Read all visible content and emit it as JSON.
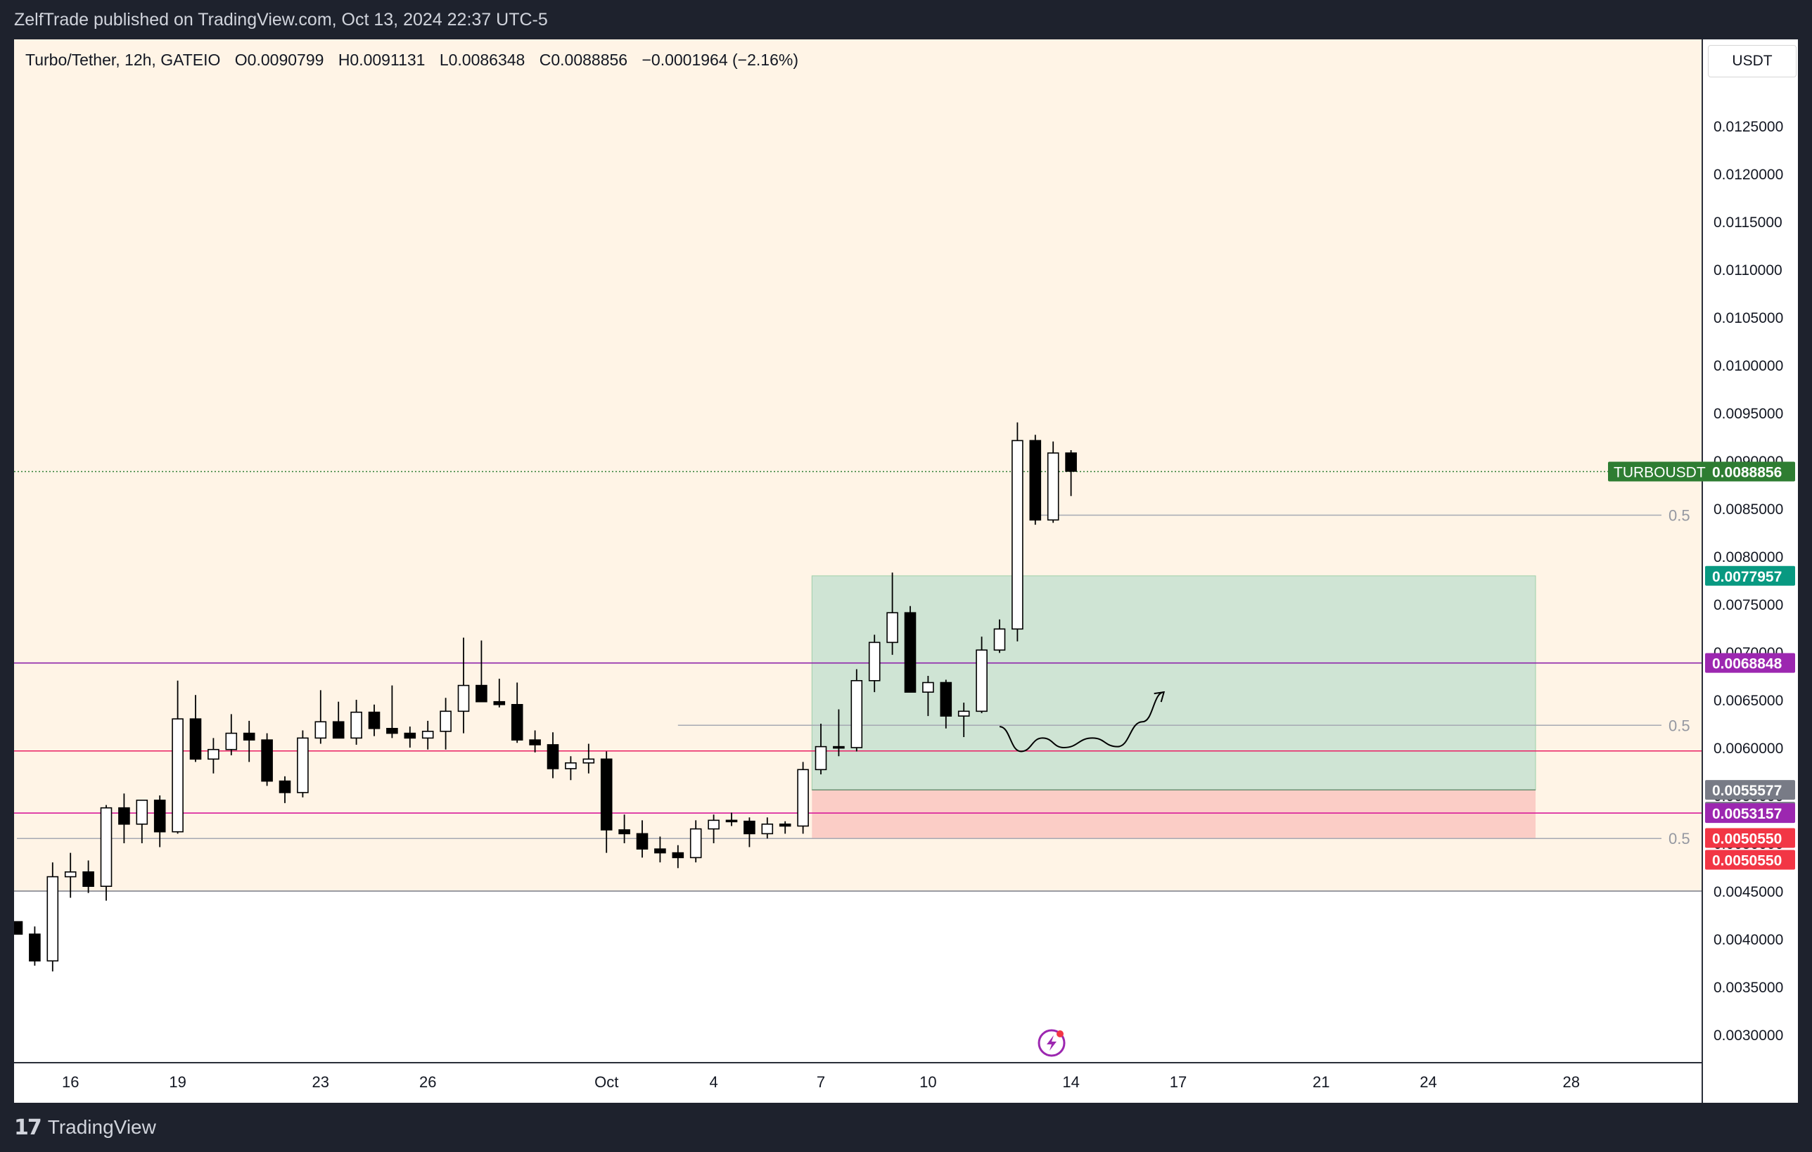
{
  "header": {
    "publish_line": "ZelfTrade published on TradingView.com, Oct 13, 2024 22:37 UTC-5"
  },
  "legend": {
    "symbol": "Turbo/Tether, 12h, GATEIO",
    "open": "O0.0090799",
    "high": "H0.0091131",
    "low": "L0.0086348",
    "close": "C0.0088856",
    "change": "−0.0001964 (−2.16%)"
  },
  "currency": "USDT",
  "footer": {
    "brand": "TradingView",
    "logo_icon": "tradingview-logo-icon"
  },
  "colors": {
    "bg_zone": "#fff4e6",
    "profit_zone": "#cfe4d4",
    "loss_zone": "#fbcdc6",
    "purple_line": "#8e24aa",
    "pink_line": "#e91e63",
    "last_price": "#2e7d32",
    "label_teal": "#089981",
    "label_purple": "#9c27b0",
    "label_gray": "#787b86",
    "label_red": "#f23645"
  },
  "chart_data": {
    "type": "candlestick",
    "symbol": "TURBOUSDT",
    "interval": "12h",
    "exchange": "GATEIO",
    "y_axis_ticks": [
      "0.0030000",
      "0.0035000",
      "0.0040000",
      "0.0045000",
      "0.0050000",
      "0.0055000",
      "0.0060000",
      "0.0065000",
      "0.0070000",
      "0.0075000",
      "0.0080000",
      "0.0085000",
      "0.0090000",
      "0.0095000",
      "0.0100000",
      "0.0105000",
      "0.0110000",
      "0.0115000",
      "0.0120000",
      "0.0125000"
    ],
    "x_axis_ticks": [
      {
        "label": "16",
        "slot": 3
      },
      {
        "label": "19",
        "slot": 9
      },
      {
        "label": "23",
        "slot": 17
      },
      {
        "label": "26",
        "slot": 23
      },
      {
        "label": "Oct",
        "slot": 33
      },
      {
        "label": "4",
        "slot": 39
      },
      {
        "label": "7",
        "slot": 45
      },
      {
        "label": "10",
        "slot": 51
      },
      {
        "label": "14",
        "slot": 59
      },
      {
        "label": "17",
        "slot": 65
      },
      {
        "label": "21",
        "slot": 73
      },
      {
        "label": "24",
        "slot": 79
      },
      {
        "label": "28",
        "slot": 87
      }
    ],
    "candles": [
      [
        0.00418,
        0.00418,
        0.00405,
        0.00405
      ],
      [
        0.00405,
        0.00413,
        0.00372,
        0.00377
      ],
      [
        0.00377,
        0.0048,
        0.00366,
        0.00465
      ],
      [
        0.00465,
        0.0049,
        0.00443,
        0.0047
      ],
      [
        0.0047,
        0.00482,
        0.00448,
        0.00455
      ],
      [
        0.00455,
        0.0054,
        0.0044,
        0.00537
      ],
      [
        0.00537,
        0.00552,
        0.005,
        0.0052
      ],
      [
        0.0052,
        0.00545,
        0.005,
        0.00545
      ],
      [
        0.00545,
        0.0055,
        0.00496,
        0.00512
      ],
      [
        0.00512,
        0.0067,
        0.0051,
        0.0063
      ],
      [
        0.0063,
        0.00655,
        0.00585,
        0.00588
      ],
      [
        0.00588,
        0.0061,
        0.00573,
        0.00598
      ],
      [
        0.00598,
        0.00635,
        0.00592,
        0.00615
      ],
      [
        0.00615,
        0.00628,
        0.00585,
        0.00608
      ],
      [
        0.00608,
        0.00615,
        0.0056,
        0.00565
      ],
      [
        0.00565,
        0.0057,
        0.00542,
        0.00553
      ],
      [
        0.00553,
        0.00618,
        0.00548,
        0.0061
      ],
      [
        0.0061,
        0.0066,
        0.00604,
        0.00627
      ],
      [
        0.00627,
        0.00648,
        0.00612,
        0.0061
      ],
      [
        0.0061,
        0.0065,
        0.00603,
        0.00637
      ],
      [
        0.00637,
        0.00645,
        0.00612,
        0.0062
      ],
      [
        0.0062,
        0.00665,
        0.0061,
        0.00615
      ],
      [
        0.00615,
        0.00622,
        0.006,
        0.0061
      ],
      [
        0.0061,
        0.00628,
        0.00598,
        0.00617
      ],
      [
        0.00617,
        0.00652,
        0.00598,
        0.00638
      ],
      [
        0.00638,
        0.00715,
        0.00615,
        0.00665
      ],
      [
        0.00665,
        0.00712,
        0.00653,
        0.00648
      ],
      [
        0.00648,
        0.00672,
        0.00642,
        0.00645
      ],
      [
        0.00645,
        0.00668,
        0.00605,
        0.00608
      ],
      [
        0.00608,
        0.00618,
        0.00595,
        0.00603
      ],
      [
        0.00603,
        0.00616,
        0.00568,
        0.00578
      ],
      [
        0.00578,
        0.00591,
        0.00566,
        0.00584
      ],
      [
        0.00584,
        0.00604,
        0.00573,
        0.00588
      ],
      [
        0.00588,
        0.00596,
        0.0049,
        0.00514
      ],
      [
        0.00514,
        0.0053,
        0.005,
        0.0051
      ],
      [
        0.0051,
        0.00524,
        0.00485,
        0.00494
      ],
      [
        0.00494,
        0.00507,
        0.0048,
        0.0049
      ],
      [
        0.0049,
        0.00498,
        0.00474,
        0.00485
      ],
      [
        0.00485,
        0.00524,
        0.0048,
        0.00515
      ],
      [
        0.00515,
        0.0053,
        0.005,
        0.00524
      ],
      [
        0.00524,
        0.00532,
        0.00518,
        0.00523
      ],
      [
        0.00523,
        0.00527,
        0.00496,
        0.0051
      ],
      [
        0.0051,
        0.00527,
        0.00505,
        0.0052
      ],
      [
        0.0052,
        0.00523,
        0.0051,
        0.00518
      ],
      [
        0.00518,
        0.00585,
        0.0051,
        0.00577
      ],
      [
        0.00577,
        0.00625,
        0.00572,
        0.00601
      ],
      [
        0.00601,
        0.0064,
        0.00591,
        0.006
      ],
      [
        0.006,
        0.00682,
        0.00596,
        0.0067
      ],
      [
        0.0067,
        0.00718,
        0.00658,
        0.0071
      ],
      [
        0.0071,
        0.00783,
        0.00697,
        0.00741
      ],
      [
        0.00741,
        0.00748,
        0.00663,
        0.00658
      ],
      [
        0.00658,
        0.00675,
        0.00633,
        0.00668
      ],
      [
        0.00668,
        0.00671,
        0.0062,
        0.00633
      ],
      [
        0.00633,
        0.00647,
        0.00611,
        0.00638
      ],
      [
        0.00638,
        0.00716,
        0.00636,
        0.00702
      ],
      [
        0.00702,
        0.00734,
        0.00699,
        0.00724
      ],
      [
        0.00724,
        0.0094,
        0.00711,
        0.00921
      ],
      [
        0.00921,
        0.00927,
        0.00833,
        0.00838
      ],
      [
        0.00838,
        0.0092,
        0.00835,
        0.00908
      ],
      [
        0.00908,
        0.00911,
        0.00863,
        0.00889
      ]
    ],
    "last_price": "0.0088856",
    "last_price_symbol": "TURBOUSDT",
    "price_labels": [
      {
        "text": "0.0077957",
        "value": 0.0077957,
        "color": "#089981"
      },
      {
        "text": "0.0068848",
        "value": 0.0068848,
        "color": "#9c27b0"
      },
      {
        "text": "0.0055577",
        "value": 0.0055577,
        "color": "#787b86"
      },
      {
        "text": "0.0055577",
        "value": 0.0055577,
        "color": "#787b86",
        "stacked": 1
      },
      {
        "text": "0.0053157",
        "value": 0.0053157,
        "color": "#9c27b0"
      },
      {
        "text": "0.0050550",
        "value": 0.005055,
        "color": "#f23645"
      },
      {
        "text": "0.0050550",
        "value": 0.005055,
        "color": "#f23645",
        "stacked": 1
      }
    ],
    "horizontal_lines": [
      {
        "value": 0.0068848,
        "color": "#8e24aa"
      },
      {
        "value": 0.005965,
        "color": "#e91e63"
      },
      {
        "value": 0.0053157,
        "color": "#d81b9a"
      },
      {
        "value": 0.0045,
        "color": "#787b86"
      }
    ],
    "fib_levels": [
      {
        "label": "0.5",
        "value": 0.00843,
        "from_slot": 57
      },
      {
        "label": "0.5",
        "value": 0.006233,
        "from_slot": 37
      },
      {
        "label": "0.5",
        "value": 0.00505,
        "from_slot": 0
      }
    ],
    "position": {
      "type": "long",
      "from_slot": 44.5,
      "to_slot": 85,
      "entry": 0.0055577,
      "target": 0.0077957,
      "stop": 0.005055
    },
    "background_zone": {
      "from": 0.0045,
      "to": 0.0135
    },
    "projection_path": [
      [
        55,
        0.00622
      ],
      [
        56.2,
        0.00596
      ],
      [
        57.4,
        0.0061
      ],
      [
        58.6,
        0.006
      ],
      [
        60.2,
        0.0061
      ],
      [
        61.6,
        0.00601
      ],
      [
        63,
        0.00627
      ],
      [
        64.2,
        0.00658
      ]
    ]
  }
}
